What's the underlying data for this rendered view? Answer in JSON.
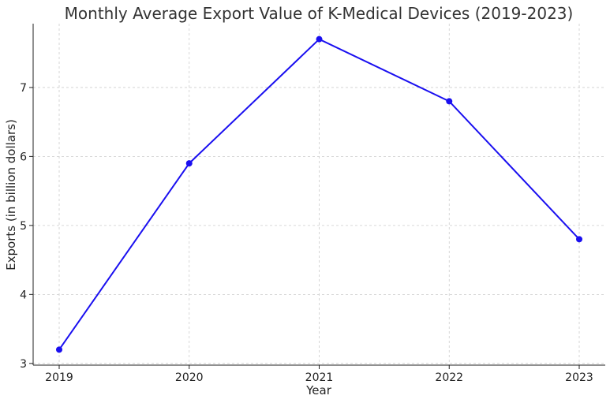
{
  "chart_data": {
    "type": "line",
    "title": "Monthly Average Export Value of K-Medical Devices (2019-2023)",
    "xlabel": "Year",
    "ylabel": "Exports (in billion dollars)",
    "x": [
      "2019",
      "2020",
      "2021",
      "2022",
      "2023"
    ],
    "series": [
      {
        "values": [
          3.2,
          5.9,
          7.7,
          6.8,
          4.8
        ]
      }
    ],
    "y_ticks": [
      "3",
      "4",
      "5",
      "6",
      "7"
    ],
    "ylim": [
      2.975,
      7.925
    ],
    "grid": true,
    "line_color": "#1a0ff0",
    "marker_color": "#1a0ff0"
  }
}
